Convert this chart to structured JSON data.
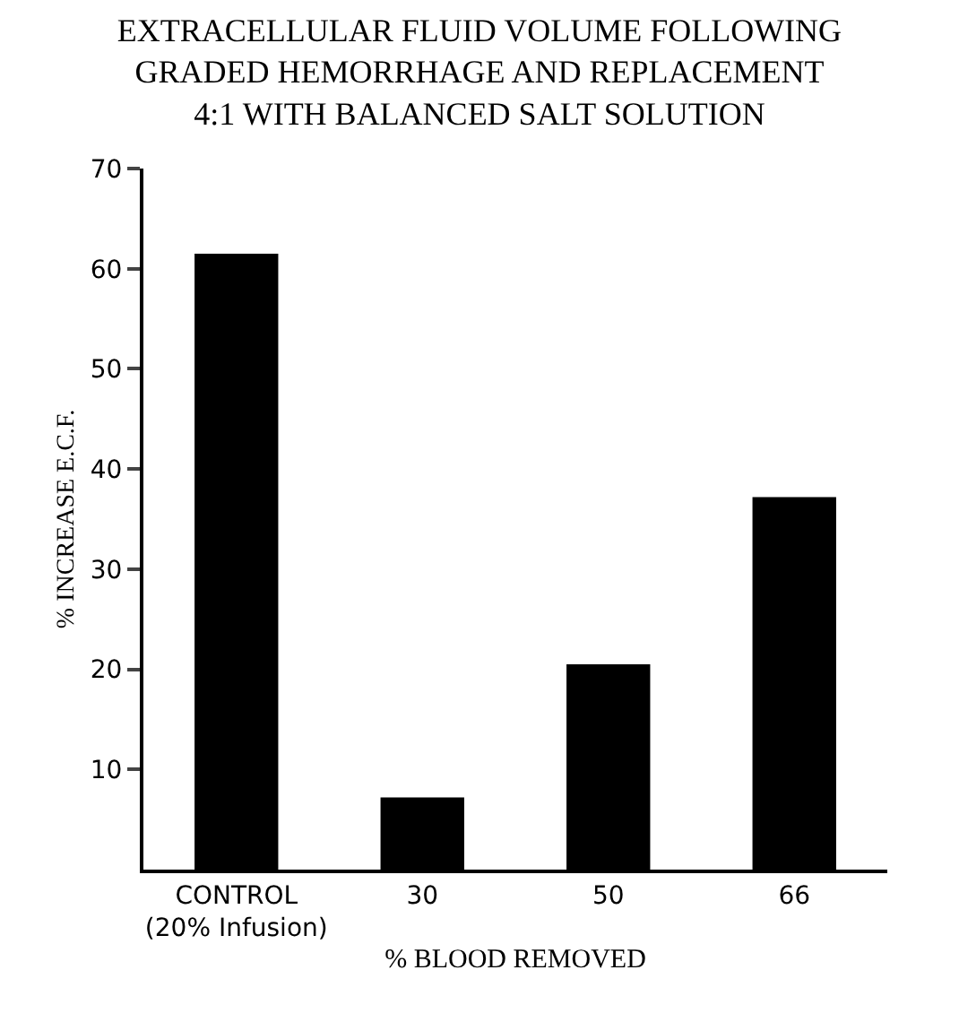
{
  "chart_data": {
    "type": "bar",
    "title": "EXTRACELLULAR FLUID VOLUME FOLLOWING\nGRADED HEMORRHAGE AND REPLACEMENT\n4:1 WITH BALANCED SALT SOLUTION",
    "xlabel": "% BLOOD REMOVED",
    "ylabel": "% INCREASE E.C.F.",
    "categories": [
      "CONTROL\n(20% Infusion)",
      "30",
      "50",
      "66"
    ],
    "values": [
      61.5,
      7.2,
      20.5,
      37.2
    ],
    "color": "#000000",
    "ylim": [
      0,
      70
    ],
    "yticks": [
      10,
      20,
      30,
      40,
      50,
      60,
      70
    ],
    "grid": false,
    "legend": false
  }
}
